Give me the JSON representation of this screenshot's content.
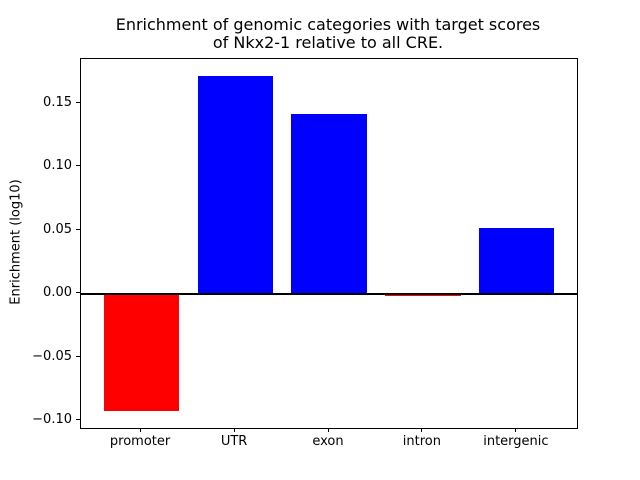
{
  "figure": {
    "title_line1": "Enrichment of genomic categories with target scores",
    "title_line2": "of Nkx2-1 relative to all CRE.",
    "background_color": "#ffffff",
    "axis_color": "#000000"
  },
  "chart_data": {
    "type": "bar",
    "title": "Enrichment of genomic categories with target scores\nof Nkx2-1 relative to all CRE.",
    "xlabel": "",
    "ylabel": "Enrichment (log10)",
    "categories": [
      "promoter",
      "UTR",
      "exon",
      "intron",
      "intergenic"
    ],
    "values": [
      -0.093,
      0.172,
      0.142,
      -0.002,
      0.052
    ],
    "bar_colors": [
      "#ff0000",
      "#0000ff",
      "#0000ff",
      "#ff0000",
      "#0000ff"
    ],
    "positive_color": "#0000ff",
    "negative_color": "#ff0000",
    "ylim": [
      -0.106,
      0.185
    ],
    "yticks": [
      0.15,
      0.1,
      0.05,
      0.0,
      -0.05,
      -0.1
    ],
    "ytick_labels": [
      "0.15",
      "0.10",
      "0.05",
      "0.00",
      "−0.05",
      "−0.10"
    ],
    "bar_width_fraction": 0.8,
    "x_margin_fraction": 0.05,
    "grid": false,
    "legend": false,
    "zero_line": true,
    "zero_line_color": "#000000"
  }
}
